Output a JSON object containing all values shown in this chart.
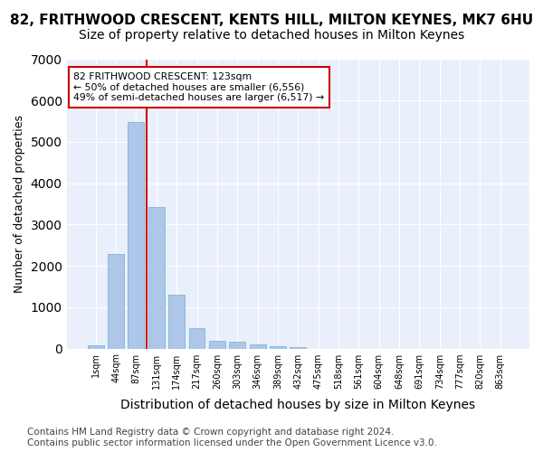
{
  "title": "82, FRITHWOOD CRESCENT, KENTS HILL, MILTON KEYNES, MK7 6HU",
  "subtitle": "Size of property relative to detached houses in Milton Keynes",
  "xlabel": "Distribution of detached houses by size in Milton Keynes",
  "ylabel": "Number of detached properties",
  "bar_values": [
    80,
    2280,
    5480,
    3420,
    1300,
    490,
    195,
    165,
    95,
    60,
    40,
    0,
    0,
    0,
    0,
    0,
    0,
    0,
    0,
    0,
    0
  ],
  "categories": [
    "1sqm",
    "44sqm",
    "87sqm",
    "131sqm",
    "174sqm",
    "217sqm",
    "260sqm",
    "303sqm",
    "346sqm",
    "389sqm",
    "432sqm",
    "475sqm",
    "518sqm",
    "561sqm",
    "604sqm",
    "648sqm",
    "691sqm",
    "734sqm",
    "777sqm",
    "820sqm",
    "863sqm"
  ],
  "bar_color": "#aec6e8",
  "bar_edgecolor": "#6aaed6",
  "background_color": "#eaf0fb",
  "grid_color": "#ffffff",
  "vline_x": 2.5,
  "vline_color": "#cc0000",
  "annotation_text": "82 FRITHWOOD CRESCENT: 123sqm\n← 50% of detached houses are smaller (6,556)\n49% of semi-detached houses are larger (6,517) →",
  "annotation_box_edgecolor": "#cc0000",
  "annotation_box_facecolor": "#ffffff",
  "ylim": [
    0,
    7000
  ],
  "yticks": [
    0,
    1000,
    2000,
    3000,
    4000,
    5000,
    6000,
    7000
  ],
  "footer": "Contains HM Land Registry data © Crown copyright and database right 2024.\nContains public sector information licensed under the Open Government Licence v3.0.",
  "title_fontsize": 11,
  "subtitle_fontsize": 10,
  "xlabel_fontsize": 10,
  "ylabel_fontsize": 9,
  "footer_fontsize": 7.5
}
